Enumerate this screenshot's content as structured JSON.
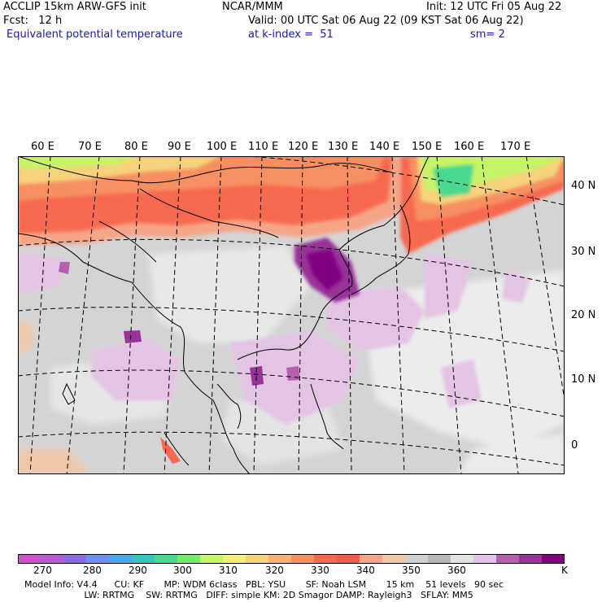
{
  "header": {
    "model": "ACCLIP 15km ARW-GFS init",
    "org": "NCAR/MMM",
    "init": "Init: 12 UTC Fri 05 Aug 22",
    "fcst": "Fcst:   12 h",
    "valid": "Valid: 00 UTC Sat 06 Aug 22 (09 KST Sat 06 Aug 22)",
    "field": "Equivalent potential temperature",
    "level": "at k-index =  51",
    "smooth": "sm= 2"
  },
  "map": {
    "lon_labels": [
      "60 E",
      "70 E",
      "80 E",
      "90 E",
      "100 E",
      "110 E",
      "120 E",
      "130 E",
      "140 E",
      "150 E",
      "160 E",
      "170 E"
    ],
    "lat_labels": [
      "40 N",
      "30 N",
      "20 N",
      "10 N",
      "0"
    ]
  },
  "colorbar": {
    "colors": [
      "#cc55cc",
      "#b85ad2",
      "#8b6be0",
      "#6f8ef0",
      "#4aa8e8",
      "#30c8c0",
      "#48d890",
      "#74ec6a",
      "#c6f46a",
      "#f2f07a",
      "#f6d27a",
      "#f8b074",
      "#f79060",
      "#f86a50",
      "#f75a48",
      "#f6a688",
      "#f0c8a8",
      "#d0d0d0",
      "#b8b8b8",
      "#e2e2e2",
      "#e4c4e4",
      "#b860b0",
      "#993399",
      "#800080"
    ],
    "labels": [
      "270",
      "280",
      "290",
      "300",
      "310",
      "320",
      "330",
      "340",
      "350",
      "360"
    ],
    "unit": "K"
  },
  "footer": {
    "line1": "Model Info: V4.4      CU: KF       MP: WDM 6class   PBL: YSU       SF: Noah LSM       15 km    51 levels   90 sec",
    "line2": "                     LW: RRTMG    SW: RRTMG   DIFF: simple KM: 2D Smagor DAMP: Rayleigh3   SFLAY: MM5"
  }
}
